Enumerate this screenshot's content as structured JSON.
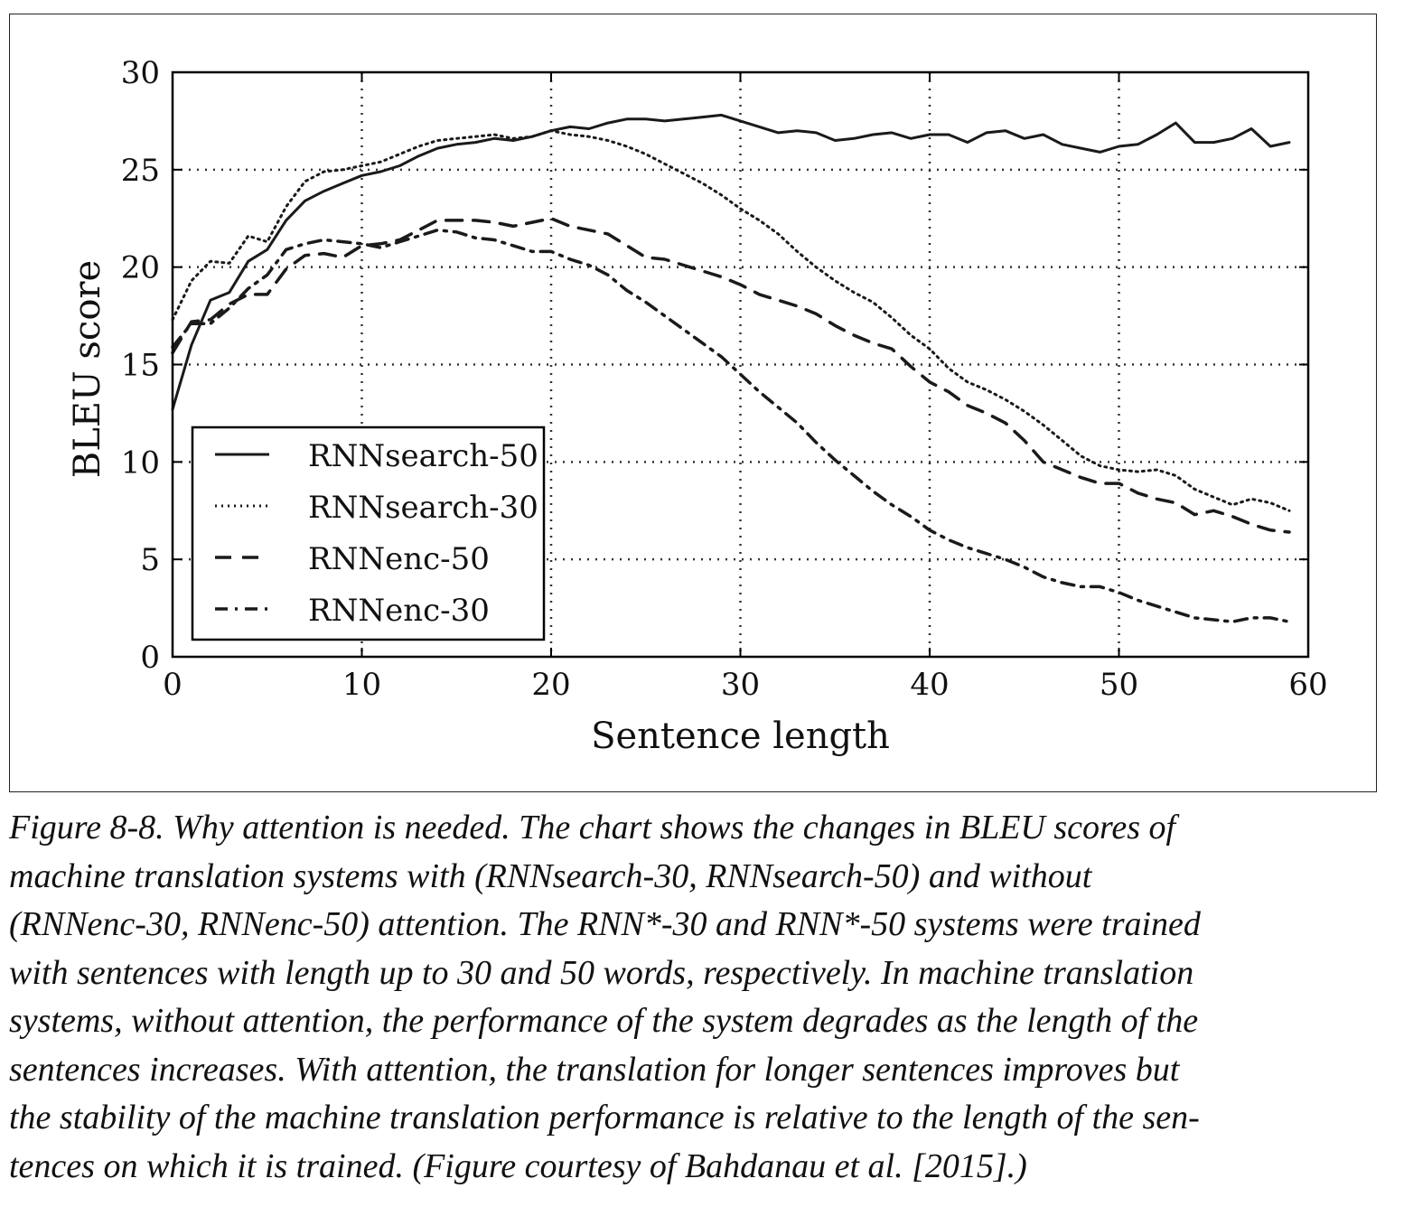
{
  "chart_data": {
    "type": "line",
    "xlabel": "Sentence length",
    "ylabel": "BLEU score",
    "xlim": [
      0,
      60
    ],
    "ylim": [
      0,
      30
    ],
    "xticks": [
      "0",
      "10",
      "20",
      "30",
      "40",
      "50",
      "60"
    ],
    "yticks": [
      "0",
      "5",
      "10",
      "15",
      "20",
      "25",
      "30"
    ],
    "grid": true,
    "legend_position": "bottom-left",
    "series": [
      {
        "name": "RNNsearch-50",
        "style": "solid",
        "x": [
          0,
          1,
          2,
          3,
          4,
          5,
          6,
          7,
          8,
          9,
          10,
          11,
          12,
          13,
          14,
          15,
          16,
          17,
          18,
          19,
          20,
          21,
          22,
          23,
          24,
          25,
          26,
          27,
          28,
          29,
          30,
          31,
          32,
          33,
          34,
          35,
          36,
          37,
          38,
          39,
          40,
          41,
          42,
          43,
          44,
          45,
          46,
          47,
          48,
          49,
          50,
          51,
          52,
          53,
          54,
          55,
          56,
          57,
          58,
          59
        ],
        "y": [
          12.7,
          16.0,
          18.3,
          18.7,
          20.3,
          20.9,
          22.4,
          23.4,
          23.9,
          24.3,
          24.7,
          24.9,
          25.2,
          25.7,
          26.1,
          26.3,
          26.4,
          26.6,
          26.5,
          26.7,
          27.0,
          27.2,
          27.1,
          27.4,
          27.6,
          27.6,
          27.5,
          27.6,
          27.7,
          27.8,
          27.5,
          27.2,
          26.9,
          27.0,
          26.9,
          26.5,
          26.6,
          26.8,
          26.9,
          26.6,
          26.8,
          26.8,
          26.4,
          26.9,
          27.0,
          26.6,
          26.8,
          26.3,
          26.1,
          25.9,
          26.2,
          26.3,
          26.8,
          27.4,
          26.4,
          26.4,
          26.6,
          27.1,
          26.2,
          26.4
        ]
      },
      {
        "name": "RNNsearch-30",
        "style": "dotted",
        "x": [
          0,
          1,
          2,
          3,
          4,
          5,
          6,
          7,
          8,
          9,
          10,
          11,
          12,
          13,
          14,
          15,
          16,
          17,
          18,
          19,
          20,
          21,
          22,
          23,
          24,
          25,
          26,
          27,
          28,
          29,
          30,
          31,
          32,
          33,
          34,
          35,
          36,
          37,
          38,
          39,
          40,
          41,
          42,
          43,
          44,
          45,
          46,
          47,
          48,
          49,
          50,
          51,
          52,
          53,
          54,
          55,
          56,
          57,
          58,
          59
        ],
        "y": [
          17.3,
          19.3,
          20.3,
          20.2,
          21.6,
          21.3,
          23.1,
          24.4,
          24.9,
          25.0,
          25.2,
          25.4,
          25.8,
          26.2,
          26.5,
          26.6,
          26.7,
          26.8,
          26.6,
          26.7,
          27.0,
          26.8,
          26.7,
          26.5,
          26.2,
          25.8,
          25.3,
          24.8,
          24.3,
          23.7,
          23.0,
          22.4,
          21.7,
          20.8,
          20.0,
          19.3,
          18.7,
          18.2,
          17.4,
          16.5,
          15.8,
          14.8,
          14.1,
          13.7,
          13.2,
          12.6,
          11.9,
          11.1,
          10.3,
          9.8,
          9.6,
          9.5,
          9.6,
          9.3,
          8.6,
          8.2,
          7.8,
          8.1,
          7.9,
          7.5
        ]
      },
      {
        "name": "RNNenc-50",
        "style": "dashed",
        "x": [
          0,
          1,
          2,
          3,
          4,
          5,
          6,
          7,
          8,
          9,
          10,
          11,
          12,
          13,
          14,
          15,
          16,
          17,
          18,
          19,
          20,
          21,
          22,
          23,
          24,
          25,
          26,
          27,
          28,
          29,
          30,
          31,
          32,
          33,
          34,
          35,
          36,
          37,
          38,
          39,
          40,
          41,
          42,
          43,
          44,
          45,
          46,
          47,
          48,
          49,
          50,
          51,
          52,
          53,
          54,
          55,
          56,
          57,
          58,
          59
        ],
        "y": [
          15.6,
          17.2,
          17.3,
          18.1,
          18.6,
          18.6,
          19.9,
          20.6,
          20.7,
          20.5,
          21.1,
          21.2,
          21.4,
          21.9,
          22.4,
          22.4,
          22.4,
          22.3,
          22.1,
          22.3,
          22.5,
          22.1,
          21.9,
          21.7,
          21.1,
          20.5,
          20.4,
          20.1,
          19.8,
          19.5,
          19.1,
          18.6,
          18.3,
          18.0,
          17.6,
          17.0,
          16.5,
          16.1,
          15.8,
          14.9,
          14.1,
          13.6,
          12.9,
          12.5,
          12.0,
          11.1,
          10.0,
          9.6,
          9.2,
          8.9,
          8.9,
          8.4,
          8.1,
          7.9,
          7.3,
          7.5,
          7.2,
          6.8,
          6.5,
          6.4
        ]
      },
      {
        "name": "RNNenc-30",
        "style": "dashdot",
        "x": [
          0,
          1,
          2,
          3,
          4,
          5,
          6,
          7,
          8,
          9,
          10,
          11,
          12,
          13,
          14,
          15,
          16,
          17,
          18,
          19,
          20,
          21,
          22,
          23,
          24,
          25,
          26,
          27,
          28,
          29,
          30,
          31,
          32,
          33,
          34,
          35,
          36,
          37,
          38,
          39,
          40,
          41,
          42,
          43,
          44,
          45,
          46,
          47,
          48,
          49,
          50,
          51,
          52,
          53,
          54,
          55,
          56,
          57,
          58,
          59
        ],
        "y": [
          15.9,
          17.1,
          17.1,
          17.9,
          18.9,
          19.6,
          20.9,
          21.2,
          21.4,
          21.3,
          21.2,
          21.0,
          21.3,
          21.6,
          21.9,
          21.8,
          21.5,
          21.4,
          21.1,
          20.8,
          20.8,
          20.4,
          20.1,
          19.6,
          18.8,
          18.2,
          17.5,
          16.8,
          16.1,
          15.4,
          14.5,
          13.6,
          12.8,
          12.0,
          11.0,
          10.1,
          9.3,
          8.5,
          7.8,
          7.2,
          6.5,
          6.0,
          5.6,
          5.3,
          5.0,
          4.6,
          4.1,
          3.8,
          3.6,
          3.6,
          3.3,
          2.9,
          2.6,
          2.3,
          2.0,
          1.9,
          1.8,
          2.0,
          2.0,
          1.8
        ]
      }
    ]
  },
  "caption": {
    "lines": [
      "Figure 8-8. Why attention is needed. The chart shows the changes in BLEU scores of",
      "machine translation systems with (RNNsearch-30, RNNsearch-50) and without",
      "(RNNenc-30, RNNenc-50) attention. The RNN*-30 and RNN*-50 systems were trained",
      "with sentences with length up to 30 and 50 words, respectively. In machine translation",
      "systems, without attention, the performance of the system degrades as the length of the",
      "sentences increases. With attention, the translation for longer sentences improves but",
      "the stability of the machine translation performance is relative to the length of the sen-",
      "tences on which it is trained. (Figure courtesy of Bahdanau et al. [2015].)"
    ]
  }
}
